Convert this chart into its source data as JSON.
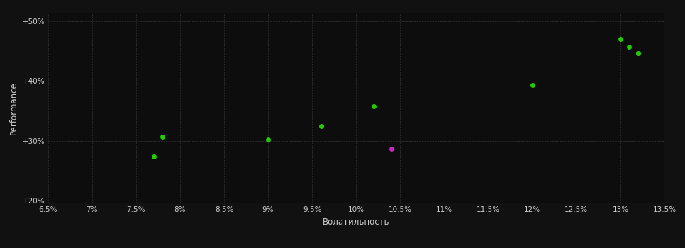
{
  "background_color": "#111111",
  "plot_bg_color": "#0d0d0d",
  "grid_color": "#333333",
  "text_color": "#cccccc",
  "xlabel": "Волатильность",
  "ylabel": "Performance",
  "xlim": [
    0.065,
    0.135
  ],
  "ylim": [
    0.195,
    0.515
  ],
  "xticks": [
    0.065,
    0.07,
    0.075,
    0.08,
    0.085,
    0.09,
    0.095,
    0.1,
    0.105,
    0.11,
    0.115,
    0.12,
    0.125,
    0.13,
    0.135
  ],
  "yticks": [
    0.2,
    0.3,
    0.4,
    0.5
  ],
  "ytick_labels": [
    "+20%",
    "+30%",
    "+40%",
    "+50%"
  ],
  "xtick_labels": [
    "6.5%",
    "7%",
    "7.5%",
    "8%",
    "8.5%",
    "9%",
    "9.5%",
    "10%",
    "10.5%",
    "11%",
    "11.5%",
    "12%",
    "12.5%",
    "13%",
    "13.5%"
  ],
  "scatter_green": [
    [
      0.078,
      0.307
    ],
    [
      0.077,
      0.273
    ],
    [
      0.09,
      0.302
    ],
    [
      0.096,
      0.325
    ],
    [
      0.102,
      0.358
    ],
    [
      0.12,
      0.393
    ],
    [
      0.13,
      0.47
    ],
    [
      0.131,
      0.458
    ],
    [
      0.132,
      0.447
    ]
  ],
  "scatter_magenta": [
    [
      0.104,
      0.286
    ]
  ],
  "green_color": "#22cc00",
  "magenta_color": "#cc22cc",
  "marker_size": 25
}
